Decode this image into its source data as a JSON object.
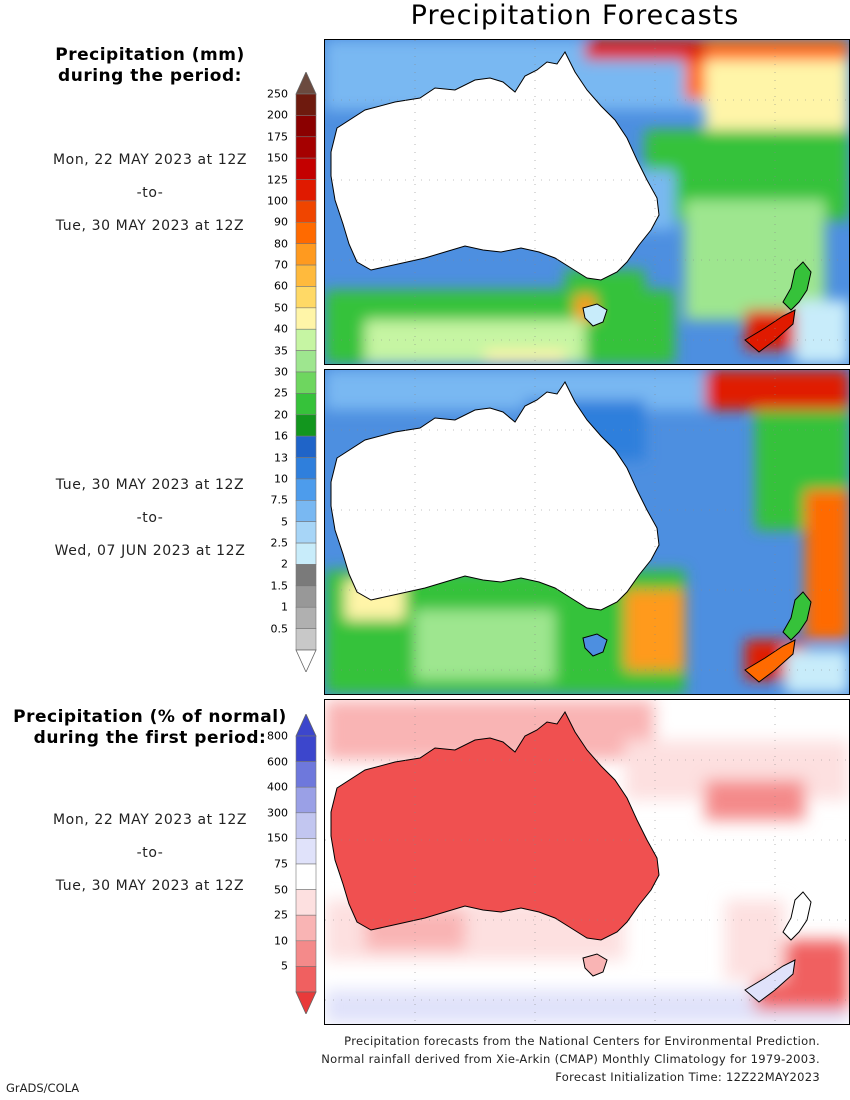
{
  "title": "Precipitation Forecasts",
  "legend_mm": {
    "title_line1": "Precipitation (mm)",
    "title_line2": "during the period:",
    "levels": [
      "250",
      "200",
      "175",
      "150",
      "125",
      "100",
      "90",
      "80",
      "70",
      "60",
      "50",
      "40",
      "35",
      "30",
      "25",
      "20",
      "16",
      "13",
      "10",
      "7.5",
      "5",
      "2.5",
      "2",
      "1.5",
      "1",
      "0.5"
    ],
    "colors": [
      "#6e1a0e",
      "#8b0000",
      "#a50000",
      "#c40000",
      "#e01a00",
      "#f04500",
      "#ff6a00",
      "#ff9a1f",
      "#ffba3d",
      "#ffd966",
      "#fff5a8",
      "#c6f5a3",
      "#9ee68f",
      "#6ed65f",
      "#36c23a",
      "#12961e",
      "#1f64c8",
      "#2f7fdc",
      "#4d9cec",
      "#79b8f2",
      "#a7d5f7",
      "#c8ecfa",
      "#7a7a7a",
      "#989898",
      "#b0b0b0",
      "#c8c8c8"
    ],
    "top_arrow_color": "#6b4a3f",
    "bottom_arrow_color": "#ffffff"
  },
  "legend_pct": {
    "title_line1": "Precipitation (% of normal)",
    "title_line2": "during the first period:",
    "levels": [
      "800",
      "600",
      "400",
      "300",
      "150",
      "75",
      "50",
      "25",
      "10",
      "5"
    ],
    "colors": [
      "#3c46cc",
      "#6e78dc",
      "#9aa0e6",
      "#c2c6f0",
      "#e0e2fa",
      "#ffffff",
      "#fde0e0",
      "#f9b4b4",
      "#f48a8a",
      "#f06060"
    ],
    "top_arrow_color": "#3c46cc",
    "bottom_arrow_color": "#e83a3a"
  },
  "periods": [
    {
      "start": "Mon, 22 MAY 2023 at 12Z",
      "sep": "-to-",
      "end": "Tue, 30 MAY 2023 at 12Z"
    },
    {
      "start": "Tue, 30 MAY 2023 at 12Z",
      "sep": "-to-",
      "end": "Wed, 07 JUN 2023 at 12Z"
    },
    {
      "start": "Mon, 22 MAY 2023 at 12Z",
      "sep": "-to-",
      "end": "Tue, 30 MAY 2023 at 12Z"
    }
  ],
  "footer": {
    "line1": "Precipitation forecasts from the National Centers for Environmental Prediction.",
    "line2": "Normal rainfall derived from Xie-Arkin (CMAP) Monthly Climatology for 1979-2003.",
    "line3": "Forecast Initialization Time: 12Z22MAY2023"
  },
  "credit": "GrADS/COLA"
}
